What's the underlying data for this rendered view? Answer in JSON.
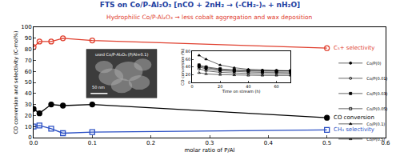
{
  "chart_data": [
    {
      "type": "line",
      "title": "FTS on Co/P-Al₂O₃ [nCO + 2nH₂ → (-CH₂-)ₙ + nH₂O]",
      "subtitle": "Hydrophilic Co/P-Al₂O₃ → less cobalt aggregation and wax deposition",
      "x_label": "molar ratio of P/Al",
      "y_label": "CO conversion and selectivity (C-mol%)",
      "x": [
        0,
        0.01,
        0.03,
        0.05,
        0.1,
        0.5
      ],
      "series": [
        {
          "name": "C₅+ selectivity",
          "color": "#e0402f",
          "marker": "circle-open",
          "line_style": "solid",
          "values": [
            82,
            87,
            87,
            90,
            88,
            81
          ]
        },
        {
          "name": "CO conversion",
          "color": "#000000",
          "marker": "circle",
          "line_style": "solid",
          "values": [
            26,
            22,
            30,
            29,
            30,
            18
          ]
        },
        {
          "name": "CH₄ selectivity",
          "color": "#2a4fc4",
          "marker": "square-open",
          "line_style": "solid",
          "values": [
            10,
            11,
            8,
            4,
            5,
            7
          ]
        }
      ],
      "xlim": [
        0,
        0.6
      ],
      "xticks": [
        {
          "value": 0,
          "label": "0.0"
        },
        0.1,
        0.2,
        0.3,
        0.4,
        0.5,
        0.6
      ],
      "ylim": [
        0,
        100
      ],
      "yticks": [
        0,
        10,
        20,
        30,
        40,
        50,
        60,
        70,
        80,
        90,
        100
      ],
      "grid": false,
      "annotations": [
        "used Co/P-Al₂O₃ (P/Al=0.1)",
        "50 nm"
      ]
    },
    {
      "type": "line",
      "x_label": "Time on stream (h)",
      "y_label": "CO conversion (%)",
      "x": [
        5,
        10,
        20,
        30,
        40,
        50,
        60,
        70
      ],
      "series": [
        {
          "name": "Co/P(0)",
          "color": "#000000",
          "marker": "circle",
          "values": [
            40,
            35,
            30,
            28,
            27,
            26,
            26,
            25
          ]
        },
        {
          "name": "Co/P(0.01)",
          "color": "#000000",
          "marker": "circle-open",
          "values": [
            35,
            30,
            26,
            24,
            23,
            22,
            22,
            22
          ]
        },
        {
          "name": "Co/P(0.03)",
          "color": "#000000",
          "marker": "square",
          "values": [
            45,
            40,
            35,
            32,
            31,
            30,
            30,
            30
          ]
        },
        {
          "name": "Co/P(0.05)",
          "color": "#000000",
          "marker": "square-open",
          "values": [
            42,
            38,
            33,
            31,
            30,
            29,
            29,
            29
          ]
        },
        {
          "name": "Co/P(0.1)",
          "color": "#000000",
          "marker": "triangle-up",
          "values": [
            70,
            60,
            45,
            38,
            34,
            32,
            31,
            30
          ]
        },
        {
          "name": "Co/P(0.5)",
          "color": "#000000",
          "marker": "triangle-up-open",
          "values": [
            25,
            22,
            20,
            19,
            18,
            18,
            18,
            18
          ]
        }
      ],
      "xlim": [
        0,
        70
      ],
      "xticks": [
        0,
        20,
        40,
        60
      ],
      "ylim": [
        0,
        80
      ],
      "yticks": [
        0,
        20,
        40,
        60,
        80
      ],
      "grid": false,
      "legend": "right"
    }
  ]
}
